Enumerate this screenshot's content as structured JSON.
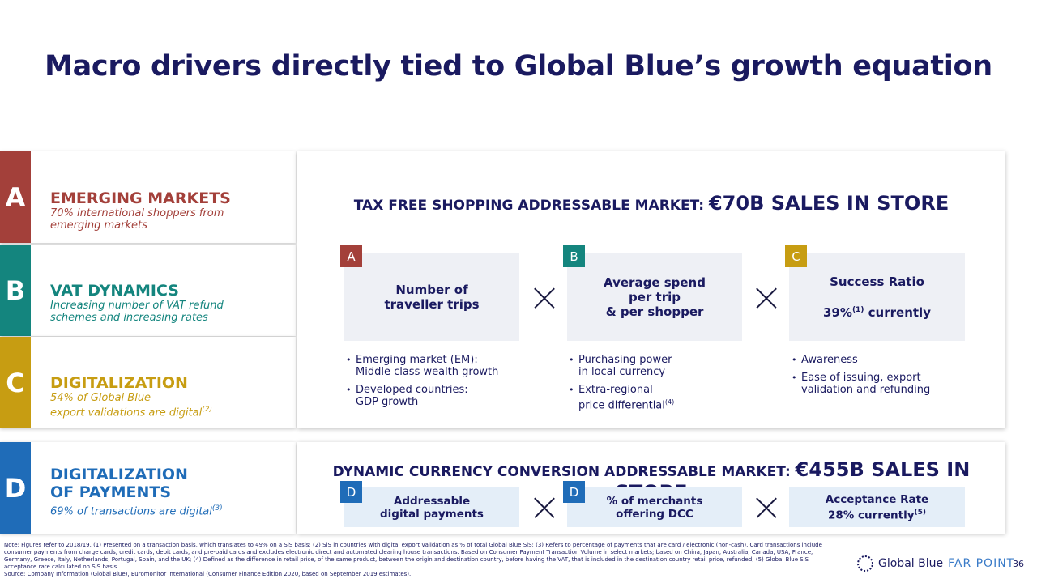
{
  "title": "Macro drivers directly tied to Global Blue’s growth equation",
  "colors": {
    "a": "#a3403a",
    "b": "#14857e",
    "c": "#c79d12",
    "d": "#1f6cb8",
    "navy": "#1a1a60"
  },
  "drivers": [
    {
      "letter": "A",
      "heading": "EMERGING MARKETS",
      "sub1": "70% international shoppers from",
      "sub2": "emerging markets",
      "sup": ""
    },
    {
      "letter": "B",
      "heading": "VAT DYNAMICS",
      "sub1": "Increasing number of VAT refund",
      "sub2": "schemes and increasing rates",
      "sup": ""
    },
    {
      "letter": "C",
      "heading": "DIGITALIZATION",
      "sub1": "54% of Global Blue",
      "sub2": "export validations are digital",
      "sup": "(2)"
    },
    {
      "letter": "D",
      "heading1": "DIGITALIZATION",
      "heading2": "OF PAYMENTS",
      "sub1": "69% of transactions are digital",
      "sup": "(3)"
    }
  ],
  "tfs": {
    "title_small": "TAX FREE SHOPPING ADDRESSABLE MARKET: ",
    "title_big": "€70B SALES IN STORE",
    "boxes": [
      {
        "badge": "A",
        "line1": "Number of",
        "line2": "traveller trips"
      },
      {
        "badge": "B",
        "line1": "Average spend",
        "line2": "per trip",
        "line3": "& per shopper"
      },
      {
        "badge": "C",
        "line1": "Success Ratio",
        "line2_pre": "39%",
        "line2_sup": "(1)",
        "line2_post": " currently"
      }
    ],
    "bullets": [
      [
        {
          "l1": "Emerging market (EM):",
          "l2": "Middle class wealth growth"
        },
        {
          "l1": "Developed countries:",
          "l2": "GDP growth"
        }
      ],
      [
        {
          "l1": "Purchasing power",
          "l2": "in local currency"
        },
        {
          "l1": "Extra-regional",
          "l2": "price differential",
          "sup": "(4)"
        }
      ],
      [
        {
          "l1": "Awareness"
        },
        {
          "l1": "Ease of issuing, export",
          "l2": "validation and refunding"
        }
      ]
    ]
  },
  "dcc": {
    "title_small": "DYNAMIC CURRENCY CONVERSION ADDRESSABLE MARKET: ",
    "title_big": "€455B SALES IN STORE",
    "boxes": [
      {
        "badge": "D",
        "line1": "Addressable",
        "line2": "digital payments"
      },
      {
        "badge": "D",
        "line1": "% of merchants",
        "line2": "offering DCC"
      },
      {
        "badge": "",
        "line1": "Acceptance Rate",
        "line2_pre": "28% currently",
        "line2_sup": "(5)"
      }
    ]
  },
  "note": "Note: Figures refer to 2018/19. (1) Presented on a transaction basis, which translates to 49% on a SiS basis; (2) SiS in countries with digital export validation as % of total Global Blue SiS; (3) Refers to percentage of payments that are card / electronic (non-cash). Card transactions include consumer payments from charge cards, credit cards, debit cards, and pre-paid cards and excludes electronic direct and automated clearing house transactions. Based on Consumer Payment Transaction Volume in select markets; based on China, Japan, Australia, Canada, USA, France, Germany, Greece, Italy, Netherlands, Portugal, Spain, and the UK; (4) Defined as the difference in retail price, of the same product, between the origin and destination country, before having the VAT, that is included in the destination country retail price, refunded; (5) Global Blue SiS acceptance rate calculated on SiS basis.",
  "source": "Source: Company Information (Global Blue), Euromonitor International (Consumer Finance Edition 2020, based on September 2019 estimates).",
  "logo": {
    "brand": "Global Blue",
    "product": "FAR POINT"
  },
  "page_number": "36"
}
